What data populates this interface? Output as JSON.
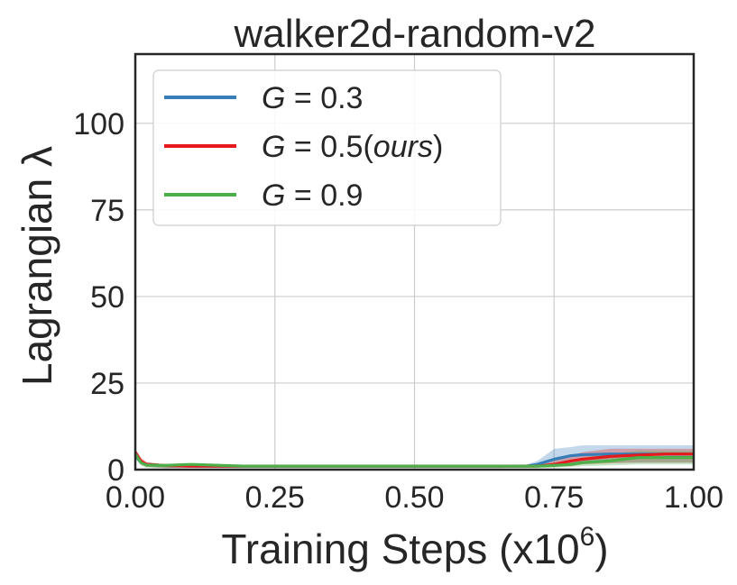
{
  "chart_data": {
    "type": "line",
    "title": "walker2d-random-v2",
    "xlabel": "Training Steps (x10",
    "xlabel_exponent": "6",
    "xlabel_close": ")",
    "ylabel": "Lagrangian λ",
    "xlim": [
      0.0,
      1.0
    ],
    "ylim": [
      0,
      120
    ],
    "xticks": [
      0.0,
      0.25,
      0.5,
      0.75,
      1.0
    ],
    "xtick_labels": [
      "0.00",
      "0.25",
      "0.50",
      "0.75",
      "1.00"
    ],
    "yticks": [
      0,
      25,
      50,
      75,
      100
    ],
    "ytick_labels": [
      "0",
      "25",
      "50",
      "75",
      "100"
    ],
    "grid": true,
    "legend_position": "top-left",
    "x": [
      0.0,
      0.01,
      0.02,
      0.05,
      0.1,
      0.2,
      0.3,
      0.4,
      0.5,
      0.6,
      0.65,
      0.7,
      0.72,
      0.75,
      0.78,
      0.8,
      0.85,
      0.9,
      0.95,
      1.0
    ],
    "series": [
      {
        "name": "G = 0.3",
        "color": "#377eb8",
        "values": [
          4.0,
          2.2,
          1.5,
          1.2,
          1.0,
          1.0,
          1.0,
          1.0,
          1.0,
          1.0,
          1.0,
          1.0,
          1.5,
          3.0,
          4.0,
          4.3,
          4.5,
          4.5,
          4.5,
          4.5
        ],
        "lower": [
          3.0,
          1.5,
          0.8,
          0.5,
          0.5,
          0.5,
          0.5,
          0.5,
          0.5,
          0.5,
          0.5,
          0.6,
          0.8,
          1.5,
          2.0,
          2.0,
          2.0,
          2.0,
          2.0,
          2.0
        ],
        "upper": [
          5.0,
          3.0,
          2.0,
          1.6,
          1.4,
          1.4,
          1.4,
          1.4,
          1.4,
          1.4,
          1.4,
          1.5,
          2.5,
          6.0,
          6.5,
          7.0,
          7.0,
          7.0,
          7.0,
          7.0
        ]
      },
      {
        "name": "G = 0.5(ours)",
        "color": "#e41a1c",
        "values": [
          5.0,
          2.5,
          1.5,
          1.2,
          1.0,
          1.0,
          1.0,
          1.0,
          1.0,
          1.0,
          1.0,
          1.0,
          1.0,
          1.5,
          2.5,
          3.0,
          3.8,
          4.2,
          4.5,
          4.5
        ],
        "lower": [
          4.0,
          1.5,
          0.8,
          0.5,
          0.5,
          0.5,
          0.5,
          0.5,
          0.5,
          0.5,
          0.5,
          0.6,
          0.6,
          0.8,
          1.0,
          1.5,
          1.8,
          2.0,
          2.0,
          2.0
        ],
        "upper": [
          6.0,
          3.5,
          2.2,
          1.6,
          1.4,
          1.4,
          1.4,
          1.4,
          1.4,
          1.4,
          1.4,
          1.4,
          1.5,
          2.5,
          4.0,
          5.0,
          6.0,
          6.0,
          6.0,
          6.0
        ]
      },
      {
        "name": "G = 0.9",
        "color": "#4daf4a",
        "values": [
          4.5,
          2.0,
          1.3,
          1.2,
          1.5,
          1.0,
          1.0,
          1.0,
          1.0,
          1.0,
          1.0,
          1.0,
          1.0,
          1.2,
          1.5,
          2.0,
          2.5,
          3.5,
          3.5,
          3.5
        ],
        "lower": [
          3.5,
          1.2,
          0.6,
          0.5,
          0.6,
          0.5,
          0.5,
          0.5,
          0.5,
          0.5,
          0.5,
          0.5,
          0.5,
          0.6,
          0.8,
          1.0,
          1.2,
          1.5,
          1.5,
          1.5
        ],
        "upper": [
          5.5,
          2.8,
          2.0,
          1.6,
          1.8,
          1.4,
          1.4,
          1.4,
          1.4,
          1.4,
          1.4,
          1.4,
          1.4,
          2.0,
          2.5,
          3.5,
          4.5,
          5.5,
          5.5,
          5.5
        ]
      }
    ],
    "legend_labels": [
      {
        "g": "G",
        "eq": "= 0.3",
        "suffix": ""
      },
      {
        "g": "G",
        "eq": "= 0.5(",
        "italic": "ours",
        "suffix": ")"
      },
      {
        "g": "G",
        "eq": "= 0.9",
        "suffix": ""
      }
    ]
  }
}
